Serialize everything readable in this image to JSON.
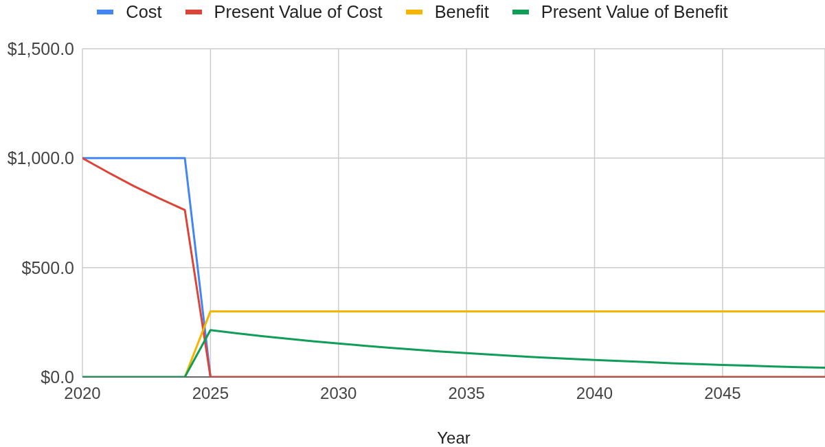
{
  "chart_data": {
    "type": "line",
    "xlabel": "Year",
    "x": [
      2020,
      2021,
      2022,
      2023,
      2024,
      2025,
      2026,
      2027,
      2028,
      2029,
      2030,
      2031,
      2032,
      2033,
      2034,
      2035,
      2036,
      2037,
      2038,
      2039,
      2040,
      2041,
      2042,
      2043,
      2044,
      2045,
      2046,
      2047,
      2048,
      2049
    ],
    "series": [
      {
        "name": "Cost",
        "color": "#4285f4",
        "values": [
          1000,
          1000,
          1000,
          1000,
          1000,
          0,
          null,
          null,
          null,
          null,
          null,
          null,
          null,
          null,
          null,
          null,
          null,
          null,
          null,
          null,
          null,
          null,
          null,
          null,
          null,
          null,
          null,
          null,
          null,
          null
        ]
      },
      {
        "name": "Present Value of Cost",
        "color": "#db4437",
        "values": [
          1000,
          935,
          873,
          816,
          763,
          0,
          0,
          0,
          0,
          0,
          0,
          0,
          0,
          0,
          0,
          0,
          0,
          0,
          0,
          0,
          0,
          0,
          0,
          0,
          0,
          0,
          0,
          0,
          0,
          0
        ]
      },
      {
        "name": "Benefit",
        "color": "#f4b400",
        "values": [
          null,
          null,
          null,
          null,
          0,
          300,
          300,
          300,
          300,
          300,
          300,
          300,
          300,
          300,
          300,
          300,
          300,
          300,
          300,
          300,
          300,
          300,
          300,
          300,
          300,
          300,
          300,
          300,
          300,
          300
        ]
      },
      {
        "name": "Present Value of Benefit",
        "color": "#0f9d58",
        "values": [
          0,
          0,
          0,
          0,
          0,
          214,
          200,
          187,
          175,
          163,
          153,
          143,
          133,
          125,
          116,
          109,
          102,
          95,
          89,
          83,
          78,
          73,
          68,
          63,
          59,
          55,
          52,
          48,
          45,
          42
        ]
      }
    ],
    "xlim": [
      2020,
      2049
    ],
    "xticks": [
      2020,
      2025,
      2030,
      2035,
      2040,
      2045
    ],
    "ylim": [
      0,
      1500
    ],
    "yticks": [
      {
        "value": 0,
        "label": "$0.0"
      },
      {
        "value": 500,
        "label": "$500.0"
      },
      {
        "value": 1000,
        "label": "$1,000.0"
      },
      {
        "value": 1500,
        "label": "$1,500.0"
      }
    ],
    "grid": true,
    "legend": "top",
    "marker": "none"
  }
}
